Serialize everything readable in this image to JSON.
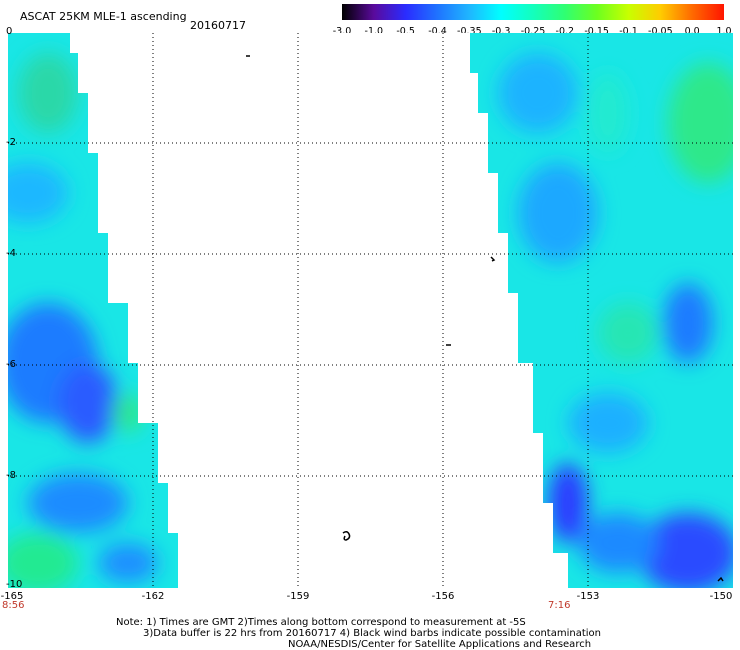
{
  "header": {
    "title": "ASCAT 25KM MLE-1 ascending",
    "date": "20160717"
  },
  "colorbar": {
    "labels": [
      "-3.0",
      "-1.0",
      "-0.5",
      "-0.4",
      "-0.35",
      "-0.3",
      "-0.25",
      "-0.2",
      "-0.15",
      "-0.1",
      "-0.05",
      "0.0",
      "1.0"
    ],
    "colors": [
      "#000000",
      "#5a0a9c",
      "#2a2cff",
      "#1f73ff",
      "#1fb6ff",
      "#00ffff",
      "#13ffbd",
      "#2fff72",
      "#6cff20",
      "#c8ff00",
      "#ffcc00",
      "#ff6a00",
      "#ff1500"
    ]
  },
  "axes": {
    "y_labels": [
      "0",
      "-2",
      "-4",
      "-6",
      "-8",
      "-10"
    ],
    "x_labels": [
      "-165",
      "-162",
      "-159",
      "-156",
      "-153",
      "-150"
    ],
    "lon_range": [
      -165,
      -150
    ],
    "lat_range": [
      0,
      -10
    ]
  },
  "times": {
    "left": "8:56",
    "right": "7:16"
  },
  "notes": {
    "line1": "Note: 1) Times are GMT 2)Times along bottom correspond to measurement at -5S",
    "line2": "3)Data buffer is 22 hrs from 20160717 4) Black wind barbs indicate possible contamination",
    "line3": "NOAA/NESDIS/Center for Satellite Applications and Research"
  }
}
